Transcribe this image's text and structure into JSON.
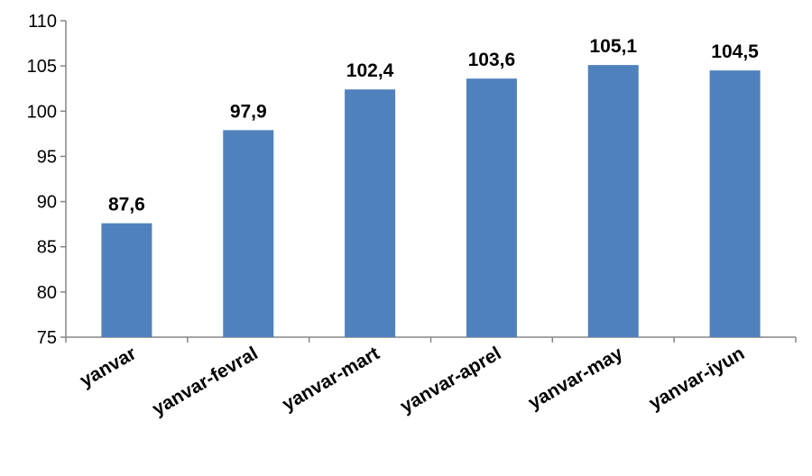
{
  "chart_data": {
    "type": "bar",
    "title": "",
    "xlabel": "",
    "ylabel": "",
    "categories": [
      "yanvar",
      "yanvar-fevral",
      "yanvar-mart",
      "yanvar-aprel",
      "yanvar-may",
      "yanvar-iyun"
    ],
    "values": [
      87.6,
      97.9,
      102.4,
      103.6,
      105.1,
      104.5
    ],
    "data_labels": [
      "87,6",
      "97,9",
      "102,4",
      "103,6",
      "105,1",
      "104,5"
    ],
    "ylim": [
      75,
      110
    ],
    "yticks": [
      75,
      80,
      85,
      90,
      95,
      100,
      105,
      110
    ],
    "grid": false,
    "legend": "none",
    "bar_color": "#4f81bd",
    "title_color": "#0070c0"
  }
}
